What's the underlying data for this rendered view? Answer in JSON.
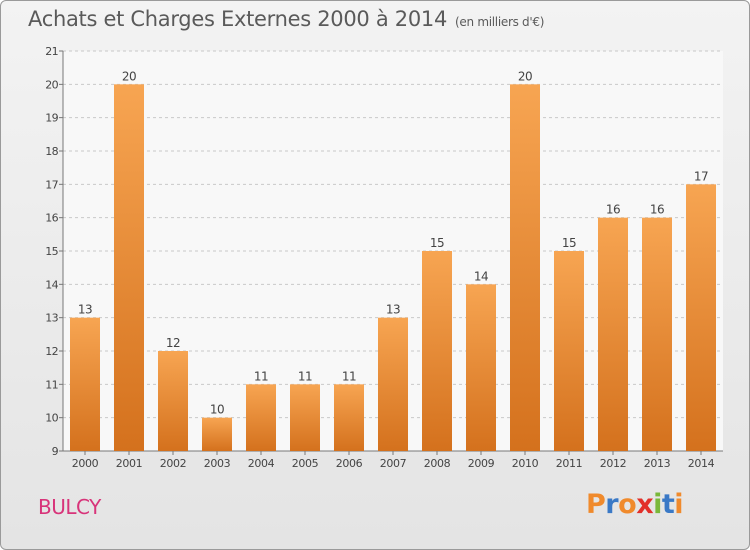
{
  "header": {
    "title": "Achats et Charges Externes 2000 à 2014",
    "unit": "(en milliers d'€)"
  },
  "footer": {
    "commune": "BULCY",
    "brand": "Proxiti"
  },
  "colors": {
    "bar_light": "#f7a552",
    "bar_dark": "#d4711d",
    "commune": "#d8347a",
    "logo_letters": [
      "#f08a2c",
      "#3a79c6",
      "#f08a2c",
      "#e2302a",
      "#7ab83a",
      "#3a79c6",
      "#f08a2c"
    ]
  },
  "chart_data": {
    "type": "bar",
    "title": "Achats et Charges Externes 2000 à 2014",
    "subtitle": "(en milliers d'€)",
    "categories": [
      "2000",
      "2001",
      "2002",
      "2003",
      "2004",
      "2005",
      "2006",
      "2007",
      "2008",
      "2009",
      "2010",
      "2011",
      "2012",
      "2013",
      "2014"
    ],
    "values": [
      13,
      20,
      12,
      10,
      11,
      11,
      11,
      13,
      15,
      14,
      20,
      15,
      16,
      16,
      17
    ],
    "ylim": [
      9,
      21
    ],
    "yticks": [
      9,
      10,
      11,
      12,
      13,
      14,
      15,
      16,
      17,
      18,
      19,
      20,
      21
    ],
    "grid": true,
    "data_labels": true
  }
}
